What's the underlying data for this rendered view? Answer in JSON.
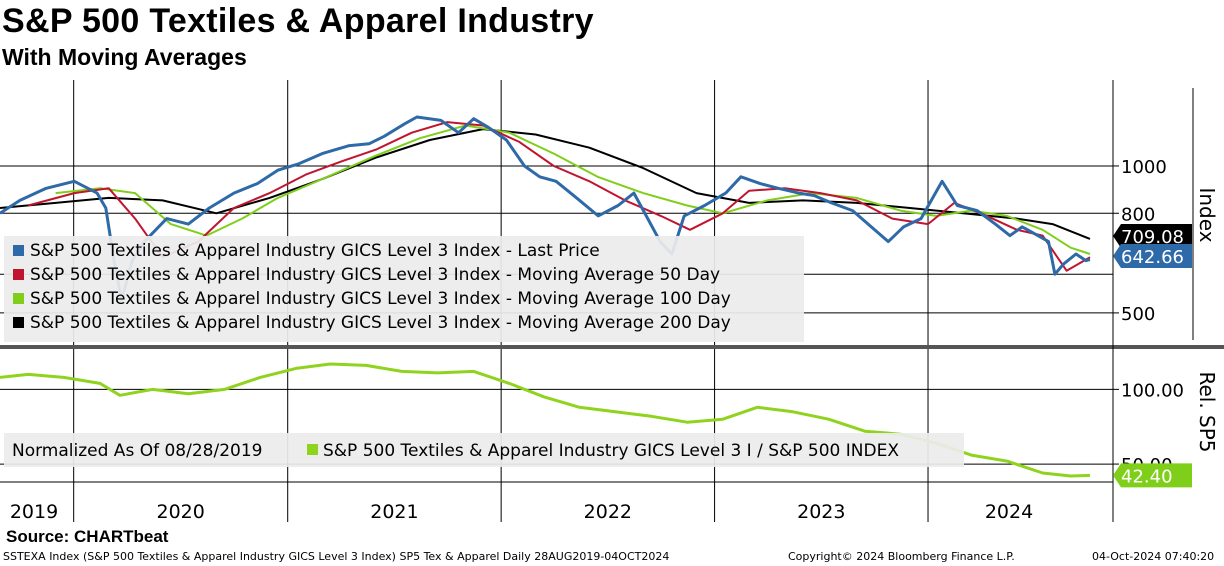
{
  "header": {
    "title": "S&P 500 Textiles & Apparel Industry",
    "subtitle": "With Moving Averages"
  },
  "footer": {
    "source": "Source: CHARTbeat",
    "description": "SSTEXA Index (S&P 500 Textiles & Apparel Industry GICS Level 3 Index) SP5 Tex & Apparel  Daily 28AUG2019-04OCT2024",
    "copyright": "Copyright© 2024 Bloomberg Finance L.P.",
    "timestamp": "04-Oct-2024 07:40:20"
  },
  "colors": {
    "last_price": "#2e69a8",
    "ma50": "#c0152f",
    "ma100": "#7fcf1a",
    "ma200": "#000000",
    "relative": "#8fd31e",
    "badge_last": "#2e69a8",
    "badge_200": "#000000",
    "badge_rel": "#7fcf1a"
  },
  "chart_data": [
    {
      "type": "line",
      "panel": "upper",
      "ylabel": "Index",
      "y_scale": "log",
      "ylim": [
        440,
        1500
      ],
      "y_ticks": [
        500,
        800,
        1000
      ],
      "x_ticks": [
        "2019",
        "2020",
        "2021",
        "2022",
        "2023",
        "2024"
      ],
      "x_range": [
        "2019-08-28",
        "2024-10-04"
      ],
      "grid": true,
      "legend_position": "bottom-left",
      "legend": [
        "S&P 500 Textiles & Apparel Industry GICS Level 3 Index - Last Price",
        "S&P 500 Textiles & Apparel Industry GICS Level 3 Index - Moving Average 50 Day",
        "S&P 500 Textiles & Apparel Industry GICS Level 3 Index - Moving Average 100 Day",
        "S&P 500 Textiles & Apparel Industry GICS Level 3 Index - Moving Average 200 Day"
      ],
      "last_value_labels": {
        "last_price": "642.66",
        "ma200": "709.08"
      },
      "series": [
        {
          "name": "S&P 500 Textiles & Apparel Industry GICS Level 3 Index - Last Price",
          "key": "last_price",
          "x": [
            "2019-08-28",
            "2019-10-01",
            "2019-11-15",
            "2020-01-02",
            "2020-02-10",
            "2020-02-25",
            "2020-03-10",
            "2020-03-23",
            "2020-04-10",
            "2020-05-01",
            "2020-06-08",
            "2020-07-15",
            "2020-08-20",
            "2020-10-01",
            "2020-11-10",
            "2020-12-15",
            "2021-01-20",
            "2021-03-01",
            "2021-04-15",
            "2021-05-20",
            "2021-06-15",
            "2021-07-20",
            "2021-08-10",
            "2021-09-20",
            "2021-10-20",
            "2021-11-15",
            "2021-12-10",
            "2022-01-10",
            "2022-02-10",
            "2022-03-08",
            "2022-04-05",
            "2022-05-10",
            "2022-06-16",
            "2022-07-20",
            "2022-08-16",
            "2022-09-30",
            "2022-10-20",
            "2022-11-10",
            "2022-12-15",
            "2023-01-20",
            "2023-02-15",
            "2023-03-20",
            "2023-04-20",
            "2023-05-25",
            "2023-06-20",
            "2023-07-20",
            "2023-08-25",
            "2023-10-25",
            "2023-11-20",
            "2023-12-20",
            "2024-01-25",
            "2024-02-20",
            "2024-03-25",
            "2024-04-25",
            "2024-05-20",
            "2024-06-10",
            "2024-06-28",
            "2024-07-25",
            "2024-08-05",
            "2024-08-20",
            "2024-09-10",
            "2024-09-27",
            "2024-10-04"
          ],
          "values": [
            800,
            850,
            900,
            930,
            880,
            820,
            640,
            530,
            640,
            700,
            780,
            760,
            820,
            880,
            920,
            980,
            1010,
            1060,
            1100,
            1110,
            1150,
            1220,
            1260,
            1240,
            1170,
            1250,
            1200,
            1130,
            1000,
            950,
            930,
            860,
            790,
            830,
            880,
            700,
            660,
            790,
            830,
            880,
            950,
            920,
            900,
            880,
            870,
            840,
            810,
            700,
            750,
            780,
            930,
            830,
            810,
            760,
            720,
            750,
            730,
            700,
            600,
            630,
            660,
            640,
            643
          ]
        },
        {
          "name": "S&P 500 Textiles & Apparel Industry GICS Level 3 Index - Moving Average 50 Day",
          "key": "ma50",
          "x": [
            "2019-10-15",
            "2020-01-02",
            "2020-03-01",
            "2020-04-15",
            "2020-06-01",
            "2020-08-01",
            "2020-10-01",
            "2020-12-01",
            "2021-02-01",
            "2021-04-01",
            "2021-06-01",
            "2021-08-01",
            "2021-10-01",
            "2021-12-01",
            "2022-02-01",
            "2022-04-01",
            "2022-06-01",
            "2022-08-01",
            "2022-10-01",
            "2022-11-20",
            "2023-01-15",
            "2023-03-01",
            "2023-05-01",
            "2023-07-01",
            "2023-09-01",
            "2023-11-01",
            "2024-01-01",
            "2024-02-15",
            "2024-04-01",
            "2024-06-01",
            "2024-07-15",
            "2024-08-25",
            "2024-10-04"
          ],
          "values": [
            830,
            880,
            900,
            780,
            650,
            700,
            820,
            880,
            960,
            1020,
            1080,
            1170,
            1230,
            1210,
            1120,
            1000,
            930,
            850,
            790,
            740,
            800,
            890,
            900,
            880,
            850,
            780,
            760,
            840,
            800,
            740,
            720,
            610,
            650
          ]
        },
        {
          "name": "S&P 500 Textiles & Apparel Industry GICS Level 3 Index - Moving Average 100 Day",
          "key": "ma100",
          "x": [
            "2019-12-01",
            "2020-02-15",
            "2020-04-15",
            "2020-06-15",
            "2020-08-15",
            "2020-10-15",
            "2020-12-15",
            "2021-03-01",
            "2021-06-01",
            "2021-08-15",
            "2021-11-01",
            "2022-01-15",
            "2022-04-01",
            "2022-06-15",
            "2022-09-01",
            "2022-11-15",
            "2023-01-15",
            "2023-04-01",
            "2023-06-15",
            "2023-09-01",
            "2023-11-15",
            "2024-01-15",
            "2024-03-15",
            "2024-05-15",
            "2024-07-15",
            "2024-09-01",
            "2024-10-04"
          ],
          "values": [
            880,
            900,
            880,
            760,
            720,
            780,
            860,
            940,
            1050,
            1140,
            1210,
            1170,
            1060,
            950,
            880,
            830,
            800,
            850,
            880,
            860,
            810,
            790,
            810,
            790,
            740,
            680,
            660
          ]
        },
        {
          "name": "S&P 500 Textiles & Apparel Industry GICS Level 3 Index - Moving Average 200 Day",
          "key": "ma200",
          "x": [
            "2019-08-28",
            "2019-12-01",
            "2020-03-01",
            "2020-06-01",
            "2020-09-01",
            "2020-12-01",
            "2021-03-01",
            "2021-06-01",
            "2021-09-01",
            "2021-12-01",
            "2022-03-01",
            "2022-06-01",
            "2022-09-01",
            "2022-12-01",
            "2023-03-01",
            "2023-06-01",
            "2023-09-01",
            "2023-12-01",
            "2024-03-01",
            "2024-06-01",
            "2024-08-01",
            "2024-10-04"
          ],
          "values": [
            820,
            840,
            860,
            850,
            800,
            860,
            940,
            1040,
            1130,
            1190,
            1160,
            1090,
            990,
            880,
            840,
            850,
            840,
            820,
            800,
            780,
            760,
            709
          ]
        }
      ]
    },
    {
      "type": "line",
      "panel": "lower",
      "ylabel": "Rel. SP5",
      "ylim": [
        38,
        125
      ],
      "y_ticks": [
        50.0,
        100.0
      ],
      "y_tick_labels": [
        "50.00",
        "100.00"
      ],
      "legend_prefix": "Normalized As Of 08/28/2019",
      "legend": [
        "S&P 500 Textiles & Apparel Industry GICS Level 3 I / S&P 500 INDEX"
      ],
      "last_value_labels": {
        "relative": "42.40"
      },
      "series": [
        {
          "name": "S&P 500 Textiles & Apparel Industry GICS Level 3 I / S&P 500 INDEX",
          "key": "relative",
          "x": [
            "2019-08-28",
            "2019-10-15",
            "2019-12-15",
            "2020-02-15",
            "2020-03-20",
            "2020-05-15",
            "2020-07-15",
            "2020-09-15",
            "2020-11-15",
            "2021-01-15",
            "2021-03-15",
            "2021-05-15",
            "2021-07-15",
            "2021-09-15",
            "2021-11-15",
            "2022-01-15",
            "2022-03-15",
            "2022-05-15",
            "2022-07-15",
            "2022-09-15",
            "2022-11-15",
            "2023-01-15",
            "2023-03-15",
            "2023-05-15",
            "2023-07-15",
            "2023-09-15",
            "2023-11-15",
            "2024-01-15",
            "2024-03-15",
            "2024-05-15",
            "2024-07-15",
            "2024-09-01",
            "2024-10-04"
          ],
          "values": [
            108,
            110,
            108,
            104,
            96,
            100,
            97,
            100,
            108,
            114,
            117,
            116,
            112,
            111,
            112,
            104,
            95,
            88,
            85,
            82,
            78,
            80,
            88,
            85,
            80,
            72,
            70,
            64,
            56,
            52,
            44,
            42,
            42.4
          ]
        }
      ]
    }
  ]
}
